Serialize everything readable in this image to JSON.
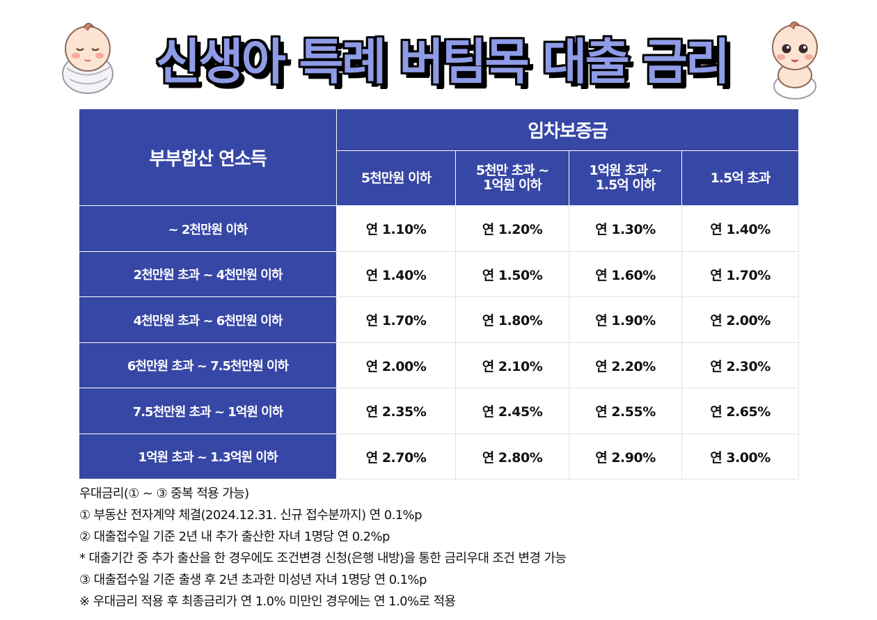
{
  "title": "신생아 특례 버팀목 대출 금리",
  "table": {
    "corner_header": "부부합산 연소득",
    "group_header": "임차보증금",
    "columns": [
      [
        "5천만원 이하"
      ],
      [
        "5천만 초과 ~",
        "1억원 이하"
      ],
      [
        "1억원 초과 ~",
        "1.5억 이하"
      ],
      [
        "1.5억 초과"
      ]
    ],
    "rows": [
      {
        "label": "~ 2천만원 이하",
        "values": [
          "연 1.10%",
          "연 1.20%",
          "연 1.30%",
          "연 1.40%"
        ]
      },
      {
        "label": "2천만원 초과 ~ 4천만원 이하",
        "values": [
          "연 1.40%",
          "연 1.50%",
          "연 1.60%",
          "연 1.70%"
        ]
      },
      {
        "label": "4천만원 초과 ~ 6천만원 이하",
        "values": [
          "연 1.70%",
          "연 1.80%",
          "연 1.90%",
          "연 2.00%"
        ]
      },
      {
        "label": "6천만원 초과 ~ 7.5천만원 이하",
        "values": [
          "연 2.00%",
          "연 2.10%",
          "연 2.20%",
          "연 2.30%"
        ]
      },
      {
        "label": "7.5천만원 초과 ~ 1억원 이하",
        "values": [
          "연 2.35%",
          "연 2.45%",
          "연 2.55%",
          "연 2.65%"
        ]
      },
      {
        "label": "1억원 초과 ~  1.3억원 이하",
        "values": [
          "연 2.70%",
          "연 2.80%",
          "연 2.90%",
          "연 3.00%"
        ]
      }
    ]
  },
  "notes": [
    "우대금리(① ~ ③ 중복 적용 가능)",
    "① 부동산 전자계약 체결(2024.12.31. 신규 접수분까지) 연 0.1%p",
    "② 대출접수일 기준 2년 내 추가 출산한 자녀 1명당 연 0.2%p",
    "* 대출기간 중 추가 출산을 한 경우에도 조건변경 신청(은행 내방)을 통한 금리우대 조건 변경 가능",
    "③ 대출접수일 기준 출생 후 2년 초과한 미성년 자녀 1명당 연 0.1%p",
    "※ 우대금리 적용 후 최종금리가 연 1.0% 미만인 경우에는 연 1.0%로 적용"
  ],
  "colors": {
    "header_bg": "#3747a5",
    "title_fill": "#8e9be6"
  }
}
